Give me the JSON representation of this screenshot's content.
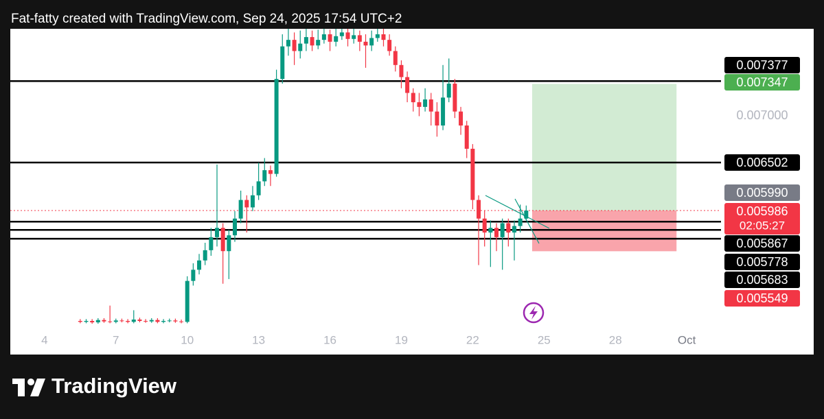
{
  "chart_data": {
    "type": "candlestick",
    "title": "Fat-fatty created with TradingView.com, Sep 24, 2025 17:54 UTC+2",
    "brand": "TradingView",
    "up_color": "#089981",
    "down_color": "#f23645",
    "xlim": [
      2.56,
      32.44
    ],
    "xticks": [
      4,
      7,
      10,
      13,
      16,
      19,
      22,
      25,
      28,
      {
        "value": 31,
        "label": "Oct"
      }
    ],
    "ylim": [
      0.004439,
      0.007939
    ],
    "yticks": [
      {
        "value": 0.007,
        "label": "0.007000"
      }
    ],
    "x": [
      5.5,
      5.75,
      6,
      6.25,
      6.5,
      6.75,
      7,
      7.25,
      7.5,
      7.75,
      8,
      8.25,
      8.5,
      8.75,
      9,
      9.25,
      9.5,
      9.75,
      10,
      10.25,
      10.5,
      10.75,
      11,
      11.25,
      11.5,
      11.75,
      12,
      12.25,
      12.5,
      12.75,
      13,
      13.25,
      13.5,
      13.75,
      14,
      14.25,
      14.5,
      14.75,
      15,
      15.25,
      15.5,
      15.75,
      16,
      16.25,
      16.5,
      16.75,
      17,
      17.25,
      17.5,
      17.75,
      18,
      18.25,
      18.5,
      18.75,
      19,
      19.25,
      19.5,
      19.75,
      20,
      20.25,
      20.5,
      20.75,
      21,
      21.25,
      21.5,
      21.75,
      22,
      22.25,
      22.5,
      22.75,
      23,
      23.25,
      23.5,
      23.75,
      24,
      24.25
    ],
    "open": [
      0.0048,
      0.00479,
      0.0048,
      0.004785,
      0.00481,
      0.004795,
      0.00479,
      0.004805,
      0.0048,
      0.00479,
      0.004815,
      0.0048,
      0.004795,
      0.00481,
      0.00479,
      0.0048,
      0.004805,
      0.004795,
      0.00479,
      0.00523,
      0.00535,
      0.00545,
      0.00556,
      0.0057,
      0.0058,
      0.00555,
      0.00572,
      0.0059,
      0.0061,
      0.00602,
      0.00615,
      0.0063,
      0.00642,
      0.00638,
      0.0074,
      0.00775,
      0.00782,
      0.0077,
      0.00778,
      0.00785,
      0.00776,
      0.00782,
      0.00788,
      0.0078,
      0.00786,
      0.0079,
      0.00783,
      0.00787,
      0.0078,
      0.00776,
      0.00784,
      0.00788,
      0.00782,
      0.0077,
      0.00755,
      0.00742,
      0.00725,
      0.00715,
      0.0071,
      0.00718,
      0.00705,
      0.0069,
      0.0072,
      0.00735,
      0.00705,
      0.0069,
      0.00665,
      0.0061,
      0.0059,
      0.00575,
      0.0058,
      0.0057,
      0.00585,
      0.00575,
      0.00582,
      0.0059
    ],
    "high": [
      0.00482,
      0.00482,
      0.00482,
      0.00483,
      0.00483,
      0.004965,
      0.004825,
      0.004825,
      0.00482,
      0.004915,
      0.004835,
      0.00482,
      0.00483,
      0.00483,
      0.00482,
      0.004825,
      0.004825,
      0.004815,
      0.00528,
      0.00542,
      0.00552,
      0.00564,
      0.0058,
      0.00648,
      0.00585,
      0.00578,
      0.00598,
      0.0062,
      0.00615,
      0.00625,
      0.0065,
      0.00655,
      0.00647,
      0.0075,
      0.00788,
      0.00795,
      0.0079,
      0.00792,
      0.00795,
      0.00792,
      0.00793,
      0.00796,
      0.00793,
      0.00794,
      0.00796,
      0.00795,
      0.00794,
      0.00792,
      0.00788,
      0.00792,
      0.00795,
      0.00794,
      0.00788,
      0.00775,
      0.0076,
      0.00748,
      0.0073,
      0.00725,
      0.0073,
      0.00725,
      0.00715,
      0.00755,
      0.00762,
      0.0074,
      0.0071,
      0.00695,
      0.0067,
      0.00615,
      0.00599,
      0.00588,
      0.00585,
      0.0059,
      0.0059,
      0.00588,
      0.00605,
      0.00604
    ],
    "low": [
      0.004775,
      0.004775,
      0.00477,
      0.00477,
      0.00478,
      0.004775,
      0.004775,
      0.004785,
      0.004775,
      0.004775,
      0.004785,
      0.00478,
      0.00478,
      0.004775,
      0.004775,
      0.004785,
      0.00478,
      0.004775,
      0.004775,
      0.00518,
      0.0053,
      0.0054,
      0.0055,
      0.0056,
      0.0052,
      0.00525,
      0.00565,
      0.00585,
      0.00575,
      0.00598,
      0.0061,
      0.00625,
      0.00625,
      0.00635,
      0.00735,
      0.00765,
      0.00755,
      0.00762,
      0.0077,
      0.0077,
      0.00772,
      0.00778,
      0.0077,
      0.00775,
      0.00782,
      0.00775,
      0.00778,
      0.0077,
      0.00752,
      0.0077,
      0.0078,
      0.00775,
      0.00765,
      0.00748,
      0.0073,
      0.00715,
      0.00705,
      0.007,
      0.00705,
      0.0069,
      0.00678,
      0.00685,
      0.00715,
      0.00698,
      0.0068,
      0.00655,
      0.006,
      0.0054,
      0.0056,
      0.00538,
      0.00555,
      0.00535,
      0.0056,
      0.00545,
      0.00575,
      0.00588
    ],
    "close": [
      0.00479,
      0.0048,
      0.004785,
      0.00481,
      0.004795,
      0.00479,
      0.004805,
      0.0048,
      0.00479,
      0.004815,
      0.0048,
      0.004795,
      0.00481,
      0.00479,
      0.0048,
      0.004805,
      0.004795,
      0.00479,
      0.00523,
      0.00535,
      0.00545,
      0.00556,
      0.0057,
      0.0058,
      0.00555,
      0.00572,
      0.0059,
      0.0061,
      0.00602,
      0.00615,
      0.0063,
      0.00642,
      0.00638,
      0.0074,
      0.00775,
      0.00782,
      0.0077,
      0.00778,
      0.00785,
      0.00776,
      0.00782,
      0.00788,
      0.0078,
      0.00786,
      0.0079,
      0.00783,
      0.00787,
      0.0078,
      0.00776,
      0.00784,
      0.00788,
      0.00782,
      0.0077,
      0.00755,
      0.00742,
      0.00725,
      0.00715,
      0.0071,
      0.00718,
      0.00705,
      0.0069,
      0.0072,
      0.00735,
      0.00705,
      0.0069,
      0.00665,
      0.0061,
      0.0059,
      0.00575,
      0.0058,
      0.0057,
      0.00585,
      0.00575,
      0.00582,
      0.0059,
      0.005986
    ],
    "levels": [
      0.007377,
      0.006502,
      0.005867,
      0.005778,
      0.005683
    ],
    "current_price": 0.005986,
    "position": {
      "start": 24.5,
      "end": 30.57,
      "take_profit": 0.007347,
      "entry": 0.005986,
      "stop_loss": 0.005549
    },
    "price_labels": [
      {
        "value": 0.007377,
        "label": "0.007377",
        "color": "#000000"
      },
      {
        "value": 0.007347,
        "label": "0.007347",
        "color": "#4caf50"
      },
      {
        "value": 0.006502,
        "label": "0.006502",
        "color": "#000000"
      },
      {
        "value": 0.00599,
        "label": "0.005990",
        "color": "#787b86"
      },
      {
        "value": 0.005986,
        "label": "0.005986",
        "color": "#f23645",
        "countdown": "02:05:27"
      },
      {
        "value": 0.005867,
        "label": "0.005867",
        "color": "#000000"
      },
      {
        "value": 0.005778,
        "label": "0.005778",
        "color": "#000000"
      },
      {
        "value": 0.005683,
        "label": "0.005683",
        "color": "#000000"
      },
      {
        "value": 0.005549,
        "label": "0.005549",
        "color": "#f23645"
      }
    ]
  }
}
